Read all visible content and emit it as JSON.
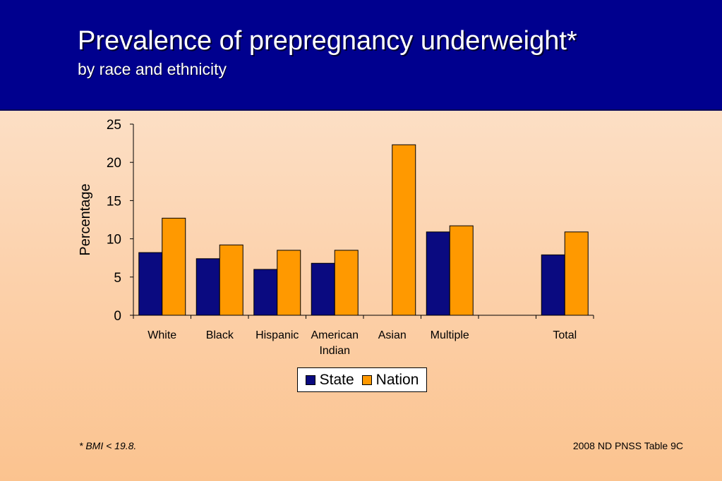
{
  "slide": {
    "title": "Prevalence of prepregnancy underweight*",
    "subtitle": "by race and ethnicity",
    "footnote": "*  BMI < 19.8.",
    "source": "2008 ND PNSS Table 9C"
  },
  "colors": {
    "header_bg": "#00008e",
    "state": "#0a0a80",
    "nation": "#ff9900"
  },
  "chart_data": {
    "type": "bar",
    "categories": [
      "White",
      "Black",
      "Hispanic",
      "American Indian",
      "Asian",
      "Multiple",
      "",
      "Total"
    ],
    "category_lines": [
      [
        "White"
      ],
      [
        "Black"
      ],
      [
        "Hispanic"
      ],
      [
        "American",
        "Indian"
      ],
      [
        "Asian"
      ],
      [
        "Multiple"
      ],
      [],
      [
        "Total"
      ]
    ],
    "series": [
      {
        "name": "State",
        "values": [
          8.2,
          7.4,
          6.0,
          6.8,
          null,
          10.9,
          null,
          7.9
        ]
      },
      {
        "name": "Nation",
        "values": [
          12.7,
          9.2,
          8.5,
          8.5,
          22.3,
          11.7,
          null,
          10.9
        ]
      }
    ],
    "ylabel": "Percentage",
    "xlabel": "",
    "ylim": [
      0,
      25
    ],
    "yticks": [
      0,
      5,
      10,
      15,
      20,
      25
    ],
    "grid": false,
    "legend": "bottom"
  }
}
